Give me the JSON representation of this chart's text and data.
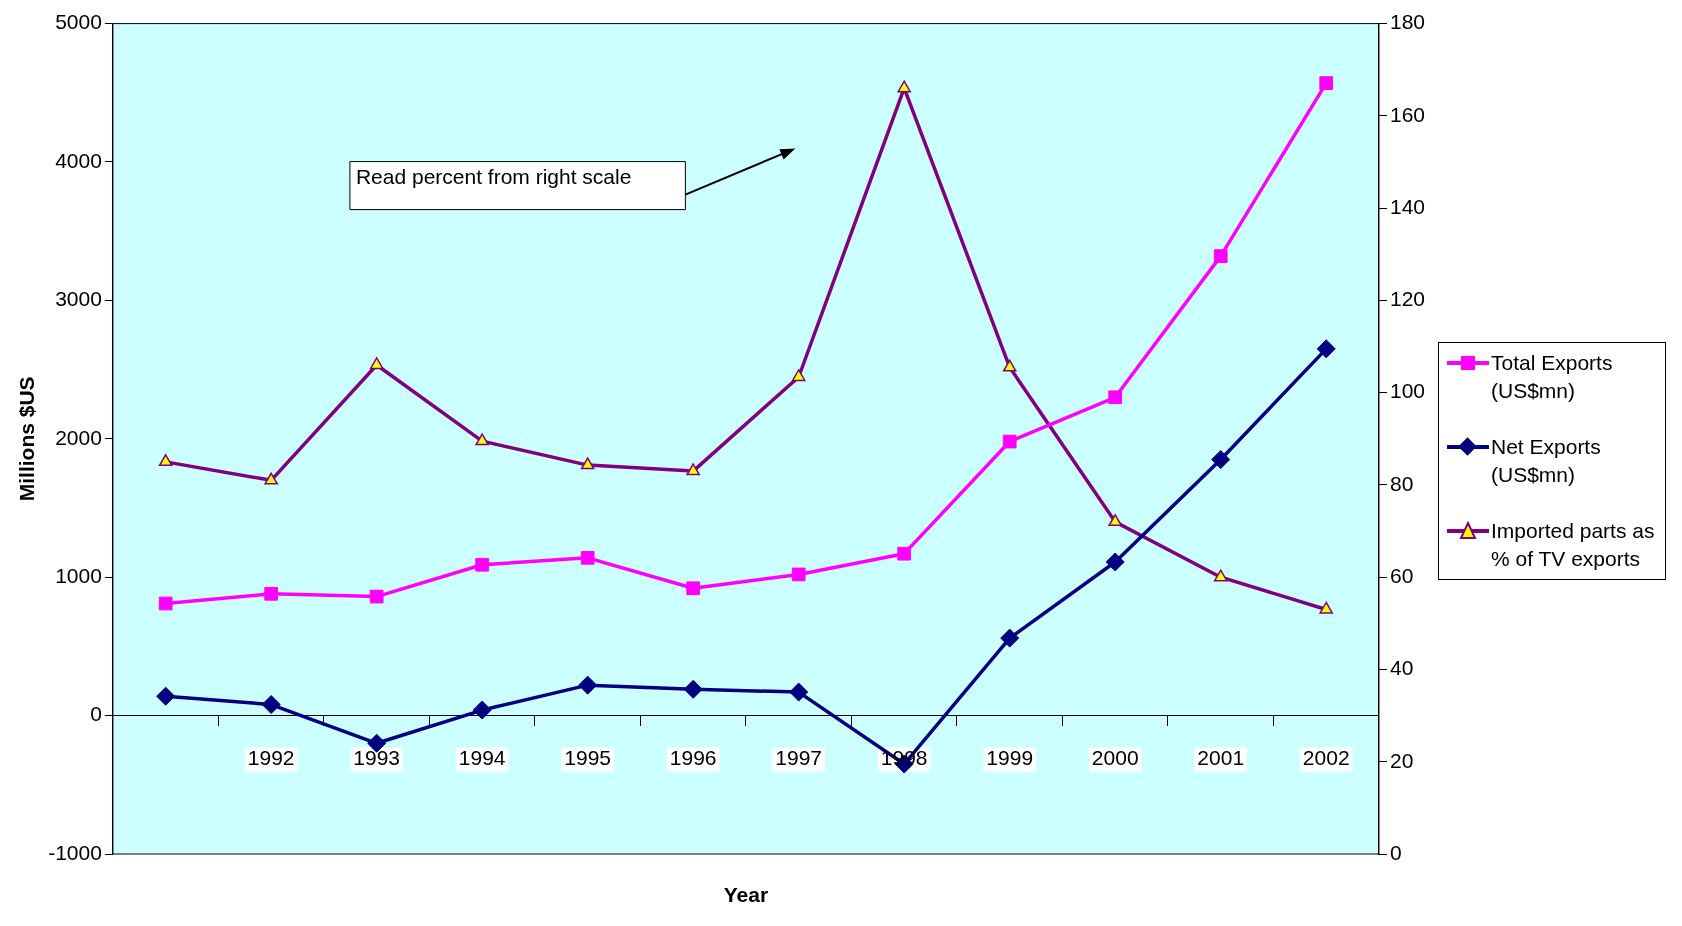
{
  "chart_data": {
    "type": "line",
    "xlabel": "Year",
    "ylabel": "Millions $US",
    "categories": [
      null,
      "1992",
      "1993",
      "1994",
      "1995",
      "1996",
      "1997",
      "1998",
      "1999",
      "2000",
      "2001",
      "2002"
    ],
    "series": [
      {
        "name": "Total Exports (US$mn)",
        "color": "#ff00ff",
        "marker": "square",
        "values": [
          810,
          880,
          860,
          1090,
          1140,
          920,
          1020,
          1170,
          1980,
          2300,
          3320,
          4570
        ]
      },
      {
        "name": "Net Exports (US$mn)",
        "color": "#000080",
        "marker": "diamond",
        "values": [
          140,
          80,
          -200,
          40,
          220,
          190,
          170,
          -350,
          560,
          1110,
          1850,
          2650
        ]
      },
      {
        "name": "Imported parts as % of TV exports",
        "color": "#800080",
        "marker": "triangle",
        "axis": "y2",
        "values": [
          85,
          81,
          106,
          89.5,
          84.3,
          83,
          103.4,
          166,
          105.5,
          72,
          60,
          53
        ]
      }
    ],
    "ylim": [
      -1000,
      5000
    ],
    "yticks": [
      -1000,
      0,
      1000,
      2000,
      3000,
      4000,
      5000
    ],
    "y2lim": [
      0,
      180
    ],
    "y2ticks": [
      0,
      20,
      40,
      60,
      80,
      100,
      120,
      140,
      160,
      180
    ],
    "grid": false,
    "legend": "right",
    "line_style": "solid",
    "annotations": [
      "Read percent from right scale"
    ]
  }
}
